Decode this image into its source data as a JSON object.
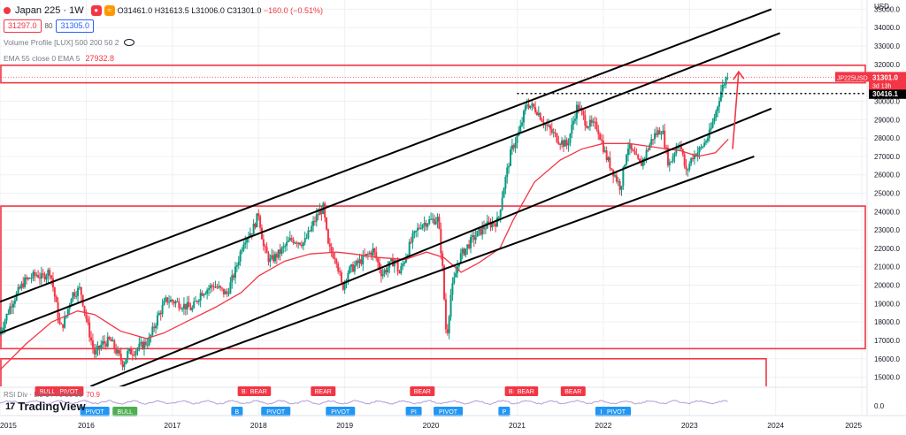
{
  "header": {
    "symbol": "Japan 225 · 1W",
    "ohlc": {
      "o": "O31461.0",
      "h": "H31613.5",
      "l": "L31006.0",
      "c": "C31301.0",
      "chg": "−160.0 (−0.51%)"
    },
    "bid": "31297.0",
    "spread": "80",
    "ask": "31305.0",
    "volume_profile": "Volume Profile [LUX] 500 200 50 2",
    "ema_label": "EMA 55 close 0 EMA 5",
    "ema_value": "27932.8",
    "currency": "USD"
  },
  "branding": {
    "name": "TradingView",
    "mark": "17"
  },
  "rsi": {
    "label": "RSI Div · Lib 14 70 30 90",
    "value": "70.9",
    "axis": "0.0"
  },
  "colors": {
    "up": "#089981",
    "down": "#f23645",
    "ema": "#f23645",
    "channel": "#000000",
    "zone": "#f23645",
    "grid": "#eef0f3"
  },
  "chart_data": {
    "type": "candlestick",
    "interval": "1W",
    "price_axis": {
      "min": 14500,
      "max": 35500,
      "ticks": [
        "15000.0",
        "16000.0",
        "17000.0",
        "18000.0",
        "19000.0",
        "20000.0",
        "21000.0",
        "22000.0",
        "23000.0",
        "24000.0",
        "25000.0",
        "26000.0",
        "27000.0",
        "28000.0",
        "29000.0",
        "30000.0",
        "31000.0",
        "32000.0",
        "33000.0",
        "34000.0",
        "35000.0"
      ]
    },
    "time_axis": {
      "start": 2015.0,
      "end": 2025.05,
      "ticks": [
        "2015",
        "2016",
        "2017",
        "2018",
        "2019",
        "2020",
        "2021",
        "2022",
        "2023",
        "2024",
        "2025"
      ]
    },
    "price_path": [
      [
        2015.0,
        17300
      ],
      [
        2015.05,
        17800
      ],
      [
        2015.15,
        19000
      ],
      [
        2015.3,
        20200
      ],
      [
        2015.45,
        20600
      ],
      [
        2015.5,
        20400
      ],
      [
        2015.6,
        20800
      ],
      [
        2015.65,
        19500
      ],
      [
        2015.72,
        17600
      ],
      [
        2015.78,
        18200
      ],
      [
        2015.85,
        19500
      ],
      [
        2015.95,
        19800
      ],
      [
        2016.05,
        17500
      ],
      [
        2016.12,
        16200
      ],
      [
        2016.2,
        16800
      ],
      [
        2016.3,
        17000
      ],
      [
        2016.45,
        15700
      ],
      [
        2016.5,
        16300
      ],
      [
        2016.6,
        16500
      ],
      [
        2016.75,
        17000
      ],
      [
        2016.85,
        18300
      ],
      [
        2016.95,
        19200
      ],
      [
        2017.05,
        19100
      ],
      [
        2017.25,
        18700
      ],
      [
        2017.35,
        19600
      ],
      [
        2017.5,
        20000
      ],
      [
        2017.65,
        19500
      ],
      [
        2017.75,
        20800
      ],
      [
        2017.85,
        22500
      ],
      [
        2017.95,
        23000
      ],
      [
        2018.02,
        23900
      ],
      [
        2018.08,
        22000
      ],
      [
        2018.15,
        21300
      ],
      [
        2018.25,
        21700
      ],
      [
        2018.4,
        22500
      ],
      [
        2018.55,
        22300
      ],
      [
        2018.7,
        23800
      ],
      [
        2018.77,
        24200
      ],
      [
        2018.83,
        22000
      ],
      [
        2018.92,
        21500
      ],
      [
        2018.99,
        19800
      ],
      [
        2019.05,
        20700
      ],
      [
        2019.2,
        21300
      ],
      [
        2019.35,
        21900
      ],
      [
        2019.45,
        20600
      ],
      [
        2019.6,
        21400
      ],
      [
        2019.65,
        20600
      ],
      [
        2019.8,
        22500
      ],
      [
        2019.9,
        23300
      ],
      [
        2020.0,
        23500
      ],
      [
        2020.1,
        23600
      ],
      [
        2020.15,
        21200
      ],
      [
        2020.2,
        17000
      ],
      [
        2020.25,
        19500
      ],
      [
        2020.35,
        21500
      ],
      [
        2020.5,
        22500
      ],
      [
        2020.65,
        23200
      ],
      [
        2020.8,
        23500
      ],
      [
        2020.85,
        25000
      ],
      [
        2020.95,
        27300
      ],
      [
        2021.05,
        28400
      ],
      [
        2021.13,
        29900
      ],
      [
        2021.25,
        29500
      ],
      [
        2021.35,
        28700
      ],
      [
        2021.5,
        27900
      ],
      [
        2021.6,
        27600
      ],
      [
        2021.72,
        29800
      ],
      [
        2021.82,
        28800
      ],
      [
        2021.95,
        28600
      ],
      [
        2022.05,
        27000
      ],
      [
        2022.15,
        26000
      ],
      [
        2022.22,
        25300
      ],
      [
        2022.3,
        27600
      ],
      [
        2022.45,
        26500
      ],
      [
        2022.6,
        28100
      ],
      [
        2022.7,
        28500
      ],
      [
        2022.78,
        26500
      ],
      [
        2022.9,
        27900
      ],
      [
        2022.98,
        26100
      ],
      [
        2023.05,
        27000
      ],
      [
        2023.15,
        27400
      ],
      [
        2023.25,
        28200
      ],
      [
        2023.33,
        29500
      ],
      [
        2023.38,
        30500
      ],
      [
        2023.43,
        31100
      ],
      [
        2023.45,
        31301
      ]
    ],
    "ema55": [
      [
        2015.0,
        15400
      ],
      [
        2015.3,
        16800
      ],
      [
        2015.6,
        18000
      ],
      [
        2015.9,
        18600
      ],
      [
        2016.1,
        18400
      ],
      [
        2016.4,
        17500
      ],
      [
        2016.7,
        17100
      ],
      [
        2016.9,
        17400
      ],
      [
        2017.2,
        18100
      ],
      [
        2017.5,
        18800
      ],
      [
        2017.8,
        19600
      ],
      [
        2018.0,
        20500
      ],
      [
        2018.3,
        21300
      ],
      [
        2018.6,
        21700
      ],
      [
        2018.9,
        21800
      ],
      [
        2019.1,
        21700
      ],
      [
        2019.4,
        21500
      ],
      [
        2019.7,
        21400
      ],
      [
        2019.95,
        21800
      ],
      [
        2020.15,
        21500
      ],
      [
        2020.35,
        20700
      ],
      [
        2020.55,
        21200
      ],
      [
        2020.8,
        22000
      ],
      [
        2020.95,
        23500
      ],
      [
        2021.2,
        25600
      ],
      [
        2021.5,
        26800
      ],
      [
        2021.75,
        27400
      ],
      [
        2022.0,
        27700
      ],
      [
        2022.3,
        27700
      ],
      [
        2022.6,
        27500
      ],
      [
        2022.9,
        27300
      ],
      [
        2023.1,
        27000
      ],
      [
        2023.3,
        27200
      ],
      [
        2023.45,
        27932.8
      ]
    ],
    "current": {
      "label": "JP225USD",
      "price": "31301.0",
      "countdown": "3d 13h"
    },
    "level": {
      "price": "30416.1",
      "line": "dotted"
    },
    "channels": [
      [
        [
          2015.0,
          19100
        ],
        [
          2023.95,
          35000
        ]
      ],
      [
        [
          2015.0,
          17400
        ],
        [
          2024.05,
          33700
        ]
      ],
      [
        [
          2016.05,
          14500
        ],
        [
          2023.95,
          29600
        ]
      ],
      [
        [
          2016.35,
          14400
        ],
        [
          2023.75,
          27000
        ]
      ]
    ],
    "zones": [
      {
        "start": 2015.0,
        "end": 2025.05,
        "low": 31000,
        "high": 31950
      },
      {
        "start": 2015.0,
        "end": 2025.05,
        "low": 16550,
        "high": 24300
      },
      {
        "start": 2015.0,
        "end": 2023.9,
        "low": 14400,
        "high": 16000
      }
    ],
    "arrow": [
      [
        2023.5,
        27400
      ],
      [
        2023.57,
        31600
      ]
    ],
    "rsi_signals": [
      {
        "x": 2015.55,
        "text": "BULL",
        "kind": "down"
      },
      {
        "x": 2015.8,
        "text": "PIVOT",
        "kind": "down"
      },
      {
        "x": 2016.1,
        "text": "PIVOT",
        "kind": "up"
      },
      {
        "x": 2016.45,
        "text": "BULL",
        "kind": "bull"
      },
      {
        "x": 2017.75,
        "text": "B",
        "kind": "up"
      },
      {
        "x": 2017.85,
        "text": "BE",
        "kind": "down"
      },
      {
        "x": 2018.0,
        "text": "BEAR",
        "kind": "down"
      },
      {
        "x": 2018.2,
        "text": "PIVOT",
        "kind": "up"
      },
      {
        "x": 2018.75,
        "text": "BEAR",
        "kind": "down"
      },
      {
        "x": 2018.95,
        "text": "PIVOT",
        "kind": "up"
      },
      {
        "x": 2019.8,
        "text": "PI",
        "kind": "up"
      },
      {
        "x": 2019.9,
        "text": "BEAR",
        "kind": "down"
      },
      {
        "x": 2020.2,
        "text": "PIVOT",
        "kind": "up"
      },
      {
        "x": 2020.85,
        "text": "P",
        "kind": "up"
      },
      {
        "x": 2020.95,
        "text": "BE",
        "kind": "down"
      },
      {
        "x": 2021.1,
        "text": "BEAR",
        "kind": "down"
      },
      {
        "x": 2021.65,
        "text": "BEAR",
        "kind": "down"
      },
      {
        "x": 2022.0,
        "text": "PI",
        "kind": "up"
      },
      {
        "x": 2022.15,
        "text": "PIVOT",
        "kind": "up"
      }
    ]
  }
}
